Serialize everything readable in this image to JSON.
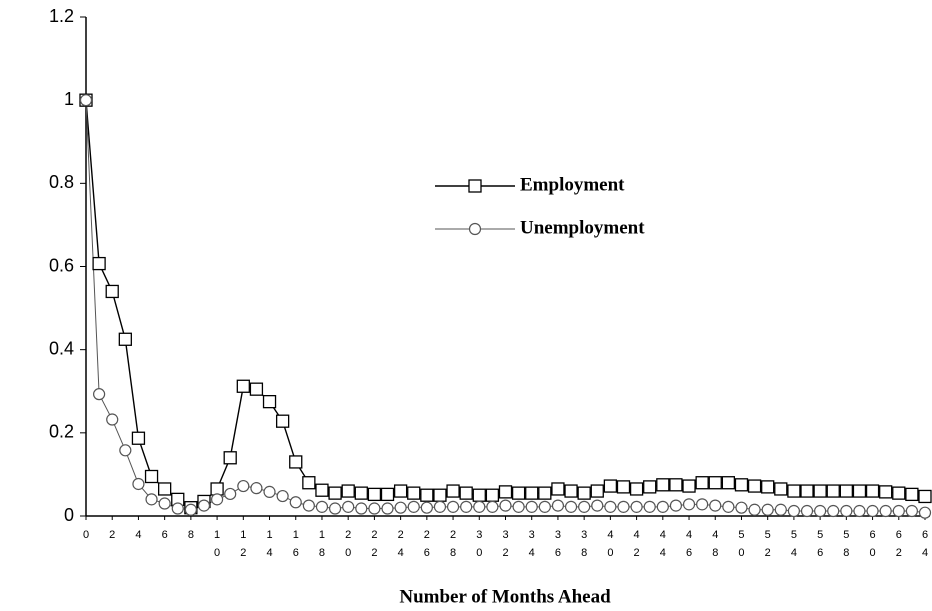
{
  "chart_data": {
    "type": "line",
    "xlabel": "Number of  Months Ahead",
    "x": [
      0,
      1,
      2,
      3,
      4,
      5,
      6,
      7,
      8,
      9,
      10,
      11,
      12,
      13,
      14,
      15,
      16,
      17,
      18,
      19,
      20,
      21,
      22,
      23,
      24,
      25,
      26,
      27,
      28,
      29,
      30,
      31,
      32,
      33,
      34,
      35,
      36,
      37,
      38,
      39,
      40,
      41,
      42,
      43,
      44,
      45,
      46,
      47,
      48,
      49,
      50,
      51,
      52,
      53,
      54,
      55,
      56,
      57,
      58,
      59,
      60,
      61,
      62,
      63,
      64
    ],
    "series": [
      {
        "name": "Employment",
        "color": "#000000",
        "marker": "square",
        "values": [
          1,
          0.607,
          0.54,
          0.425,
          0.187,
          0.095,
          0.065,
          0.04,
          0.02,
          0.035,
          0.065,
          0.14,
          0.312,
          0.305,
          0.275,
          0.228,
          0.13,
          0.08,
          0.062,
          0.055,
          0.06,
          0.055,
          0.052,
          0.052,
          0.06,
          0.055,
          0.05,
          0.05,
          0.06,
          0.055,
          0.05,
          0.05,
          0.058,
          0.055,
          0.055,
          0.055,
          0.065,
          0.06,
          0.055,
          0.06,
          0.072,
          0.07,
          0.065,
          0.07,
          0.075,
          0.075,
          0.072,
          0.08,
          0.08,
          0.08,
          0.075,
          0.072,
          0.07,
          0.065,
          0.06,
          0.06,
          0.06,
          0.06,
          0.06,
          0.06,
          0.06,
          0.058,
          0.055,
          0.052,
          0.047
        ]
      },
      {
        "name": "Unemployment",
        "color": "#555555",
        "marker": "circle",
        "values": [
          1,
          0.293,
          0.232,
          0.158,
          0.077,
          0.04,
          0.03,
          0.018,
          0.015,
          0.025,
          0.04,
          0.053,
          0.072,
          0.067,
          0.058,
          0.048,
          0.033,
          0.025,
          0.022,
          0.018,
          0.022,
          0.018,
          0.018,
          0.018,
          0.02,
          0.022,
          0.02,
          0.022,
          0.022,
          0.022,
          0.022,
          0.022,
          0.025,
          0.022,
          0.022,
          0.022,
          0.025,
          0.022,
          0.022,
          0.025,
          0.022,
          0.022,
          0.022,
          0.022,
          0.022,
          0.025,
          0.028,
          0.028,
          0.025,
          0.022,
          0.02,
          0.015,
          0.015,
          0.015,
          0.012,
          0.012,
          0.012,
          0.012,
          0.012,
          0.012,
          0.012,
          0.012,
          0.012,
          0.012,
          0.008
        ]
      }
    ],
    "xlim": [
      0,
      64
    ],
    "xticks": [
      0,
      2,
      4,
      6,
      8,
      10,
      12,
      14,
      16,
      18,
      20,
      22,
      24,
      26,
      28,
      30,
      32,
      34,
      36,
      38,
      40,
      42,
      44,
      46,
      48,
      50,
      52,
      54,
      56,
      58,
      60,
      62,
      64
    ],
    "ylim": [
      0,
      1.2
    ],
    "yticks": [
      0,
      0.2,
      0.4,
      0.6,
      0.8,
      1,
      1.2
    ],
    "grid": false
  }
}
